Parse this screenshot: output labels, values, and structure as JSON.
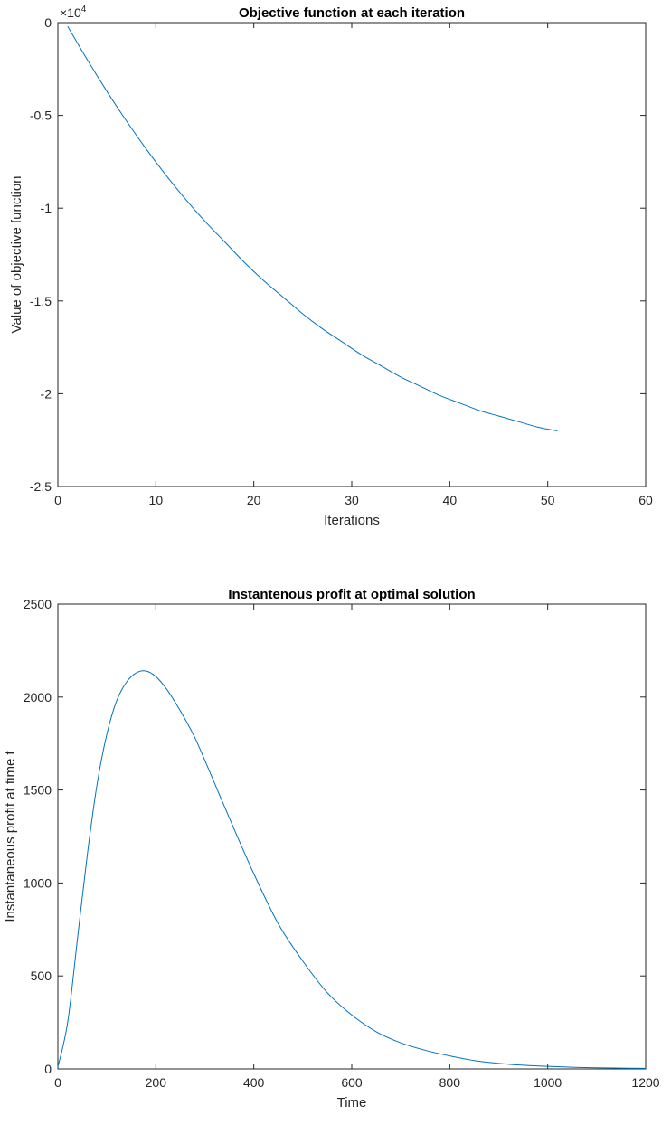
{
  "chart_data": [
    {
      "type": "line",
      "title": "Objective function at each iteration",
      "xlabel": "Iterations",
      "ylabel": "Value of objective function",
      "y_exponent_label": "×10",
      "y_exponent_power": "4",
      "xlim": [
        0,
        60
      ],
      "ylim": [
        -2.5,
        0
      ],
      "xticks": [
        "0",
        "10",
        "20",
        "30",
        "40",
        "50",
        "60"
      ],
      "yticks": [
        "0",
        "-0.5",
        "-1",
        "-1.5",
        "-2",
        "-2.5"
      ],
      "grid": false,
      "series": [
        {
          "color": "#0072bd",
          "x": [
            1,
            3,
            5,
            7,
            9,
            11,
            13,
            15,
            17,
            19,
            21,
            23,
            25,
            27,
            29,
            31,
            33,
            35,
            37,
            39,
            41,
            43,
            45,
            47,
            49,
            51
          ],
          "y": [
            -0.02,
            -0.2,
            -0.37,
            -0.53,
            -0.68,
            -0.82,
            -0.95,
            -1.07,
            -1.18,
            -1.29,
            -1.39,
            -1.48,
            -1.57,
            -1.65,
            -1.72,
            -1.79,
            -1.85,
            -1.91,
            -1.96,
            -2.01,
            -2.05,
            -2.09,
            -2.12,
            -2.15,
            -2.18,
            -2.2
          ]
        }
      ]
    },
    {
      "type": "line",
      "title": "Instantenous profit at optimal solution",
      "xlabel": "Time",
      "ylabel": "Instantaneous profit at time t",
      "xlim": [
        0,
        1200
      ],
      "ylim": [
        0,
        2500
      ],
      "xticks": [
        "0",
        "200",
        "400",
        "600",
        "800",
        "1000",
        "1200"
      ],
      "yticks": [
        "0",
        "500",
        "1000",
        "1500",
        "2000",
        "2500"
      ],
      "grid": false,
      "series": [
        {
          "color": "#0072bd",
          "x": [
            0,
            20,
            40,
            60,
            80,
            100,
            120,
            140,
            160,
            180,
            200,
            220,
            240,
            260,
            280,
            300,
            350,
            400,
            450,
            500,
            550,
            600,
            650,
            700,
            750,
            800,
            850,
            900,
            950,
            1000,
            1050,
            1100,
            1150,
            1200
          ],
          "y": [
            10,
            250,
            700,
            1150,
            1530,
            1800,
            1980,
            2080,
            2130,
            2140,
            2110,
            2050,
            1970,
            1880,
            1780,
            1660,
            1350,
            1050,
            780,
            580,
            410,
            290,
            200,
            140,
            100,
            70,
            45,
            30,
            20,
            14,
            9,
            6,
            4,
            3
          ]
        }
      ]
    }
  ]
}
